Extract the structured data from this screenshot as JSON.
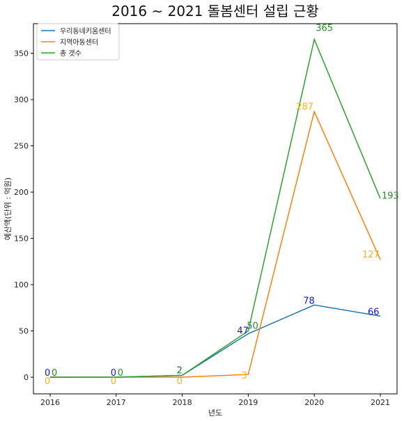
{
  "chart_data": {
    "type": "line",
    "title": "2016 ~ 2021 돌봄센터 설립 근황",
    "xlabel": "년도",
    "ylabel": "예산액(단위 : 억원)",
    "categories": [
      "2016",
      "2017",
      "2018",
      "2019",
      "2020",
      "2021"
    ],
    "ylim": [
      -18,
      382
    ],
    "yticks": [
      0,
      50,
      100,
      150,
      200,
      250,
      300,
      350
    ],
    "grid": false,
    "legend_position": "top-left",
    "series": [
      {
        "name": "우리동네키움센터",
        "color": "#1f77b4",
        "label_color": "#1515d6",
        "values": [
          0,
          0,
          2,
          47,
          78,
          66
        ],
        "point_labels": [
          "0",
          "0",
          "2",
          "47",
          "78",
          "66"
        ]
      },
      {
        "name": "지역아동센터",
        "color": "#ff7f0e",
        "label_color": "#f5b21c",
        "values": [
          0,
          0,
          0,
          3,
          287,
          127
        ],
        "point_labels": [
          "0",
          "0",
          "0",
          "3",
          "287",
          "127"
        ]
      },
      {
        "name": "총 갯수",
        "color": "#2ca02c",
        "label_color": "#2a8a2a",
        "values": [
          0,
          0,
          2,
          50,
          365,
          193
        ],
        "point_labels": [
          "0",
          "0",
          "2",
          "50",
          "365",
          "193"
        ]
      }
    ]
  }
}
